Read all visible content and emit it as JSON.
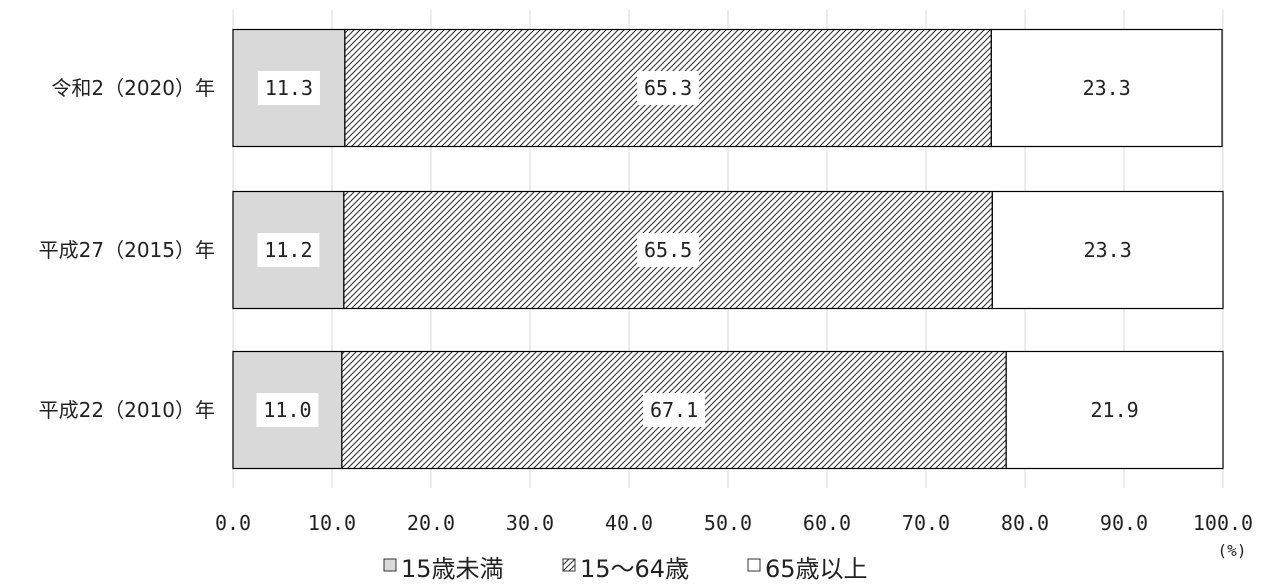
{
  "chart_data": {
    "type": "bar",
    "orientation": "horizontal",
    "stacked": true,
    "categories": [
      "令和2（2020）年",
      "平成27（2015）年",
      "平成22（2010）年"
    ],
    "series": [
      {
        "name": "15歳未満",
        "values": [
          11.3,
          11.2,
          11.0
        ],
        "labels": [
          "11.3",
          "11.2",
          "11.0"
        ],
        "fill": "#d9d9d9",
        "pattern": "none"
      },
      {
        "name": "15～64歳",
        "values": [
          65.3,
          65.5,
          67.1
        ],
        "labels": [
          "65.3",
          "65.5",
          "67.1"
        ],
        "fill": "#ffffff",
        "pattern": "diagonal-hatch"
      },
      {
        "name": "65歳以上",
        "values": [
          23.3,
          23.3,
          21.9
        ],
        "labels": [
          "23.3",
          "23.3",
          "21.9"
        ],
        "fill": "#ffffff",
        "pattern": "none"
      }
    ],
    "x_ticks": [
      "0.0",
      "10.0",
      "20.0",
      "30.0",
      "40.0",
      "50.0",
      "60.0",
      "70.0",
      "80.0",
      "90.0",
      "100.0"
    ],
    "xlim": [
      0,
      100
    ],
    "x_unit": "(%)",
    "grid": "vertical",
    "legend": "bottom"
  }
}
